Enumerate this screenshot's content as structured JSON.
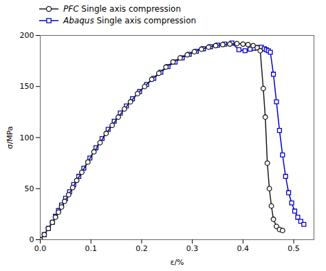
{
  "chart_data": {
    "type": "line",
    "xlabel": "ε/%",
    "ylabel": "σ/MPa",
    "series": [
      {
        "name": "PFC Single axis compression",
        "color": "#1a1a1a",
        "marker": "circle",
        "line_style": "solid",
        "x": [
          0.0,
          0.008,
          0.016,
          0.024,
          0.03,
          0.036,
          0.042,
          0.048,
          0.056,
          0.064,
          0.072,
          0.082,
          0.094,
          0.106,
          0.118,
          0.13,
          0.142,
          0.154,
          0.166,
          0.178,
          0.192,
          0.206,
          0.22,
          0.234,
          0.248,
          0.262,
          0.276,
          0.29,
          0.304,
          0.318,
          0.332,
          0.346,
          0.36,
          0.374,
          0.388,
          0.4,
          0.41,
          0.42,
          0.428,
          0.434,
          0.44,
          0.444,
          0.448,
          0.452,
          0.456,
          0.46,
          0.466,
          0.472,
          0.478
        ],
        "values": [
          0.0,
          5.0,
          11.0,
          17.0,
          22.0,
          27.0,
          32.0,
          37.5,
          44.0,
          51.0,
          58.0,
          66.0,
          76.0,
          86.0,
          95.0,
          104.0,
          112.0,
          120.0,
          128.0,
          135.0,
          143.0,
          150.0,
          157.0,
          163.0,
          169.0,
          174.0,
          178.0,
          181.0,
          184.0,
          186.5,
          188.5,
          190.0,
          191.0,
          191.5,
          192.0,
          191.5,
          191.0,
          190.0,
          188.0,
          185.0,
          148.0,
          120.0,
          75.0,
          50.0,
          33.0,
          20.0,
          13.0,
          10.0,
          9.0
        ]
      },
      {
        "name": "Abaqus Single axis compression",
        "color": "#0000cc",
        "marker": "square",
        "line_style": "solid",
        "x": [
          0.0,
          0.008,
          0.016,
          0.024,
          0.03,
          0.036,
          0.042,
          0.05,
          0.058,
          0.066,
          0.076,
          0.086,
          0.098,
          0.11,
          0.122,
          0.134,
          0.146,
          0.158,
          0.17,
          0.182,
          0.196,
          0.21,
          0.224,
          0.238,
          0.252,
          0.266,
          0.28,
          0.294,
          0.308,
          0.322,
          0.336,
          0.35,
          0.364,
          0.378,
          0.392,
          0.404,
          0.414,
          0.422,
          0.43,
          0.436,
          0.442,
          0.446,
          0.45,
          0.454,
          0.46,
          0.466,
          0.472,
          0.478,
          0.484,
          0.49,
          0.496,
          0.502,
          0.508,
          0.514,
          0.52
        ],
        "values": [
          0.0,
          5.0,
          11.0,
          17.0,
          23.0,
          28.5,
          34.0,
          40.5,
          47.0,
          54.0,
          62.0,
          70.0,
          80.0,
          90.0,
          99.0,
          108.0,
          116.0,
          124.0,
          131.0,
          138.0,
          145.0,
          152.0,
          158.0,
          164.0,
          169.5,
          174.0,
          178.0,
          181.5,
          184.5,
          187.0,
          189.0,
          190.5,
          191.5,
          192.5,
          186.0,
          185.0,
          186.5,
          187.5,
          188.0,
          188.5,
          187.0,
          186.0,
          185.0,
          183.5,
          162.0,
          135.0,
          107.0,
          83.0,
          62.0,
          46.0,
          36.0,
          28.0,
          22.0,
          18.0,
          15.0
        ]
      }
    ],
    "xlim": [
      0.0,
      0.54
    ],
    "ylim": [
      0,
      200
    ],
    "xticks": [
      {
        "value": 0.0,
        "label": "0.0"
      },
      0.1,
      0.2,
      0.3,
      0.4,
      0.5
    ],
    "yticks": [
      0,
      50,
      100,
      150,
      200
    ],
    "legend": "upper left",
    "grid": false
  }
}
